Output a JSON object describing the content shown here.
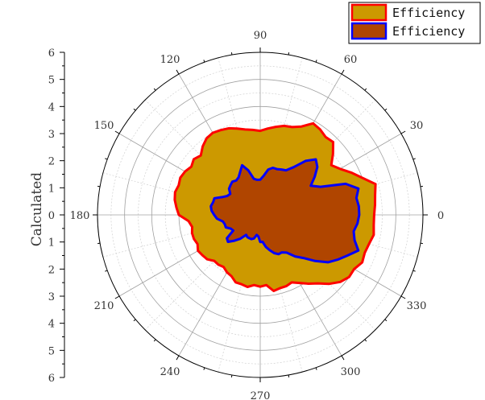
{
  "chart_data": {
    "type": "polar-area",
    "ylabel": "Calculated",
    "rlim": [
      0,
      6
    ],
    "radial_axis_ticks": [
      "6",
      "5",
      "4",
      "3",
      "2",
      "1",
      "0",
      "1",
      "2",
      "3",
      "4",
      "5",
      "6"
    ],
    "angle_ticks": [
      "0",
      "30",
      "60",
      "90",
      "120",
      "150",
      "180",
      "210",
      "240",
      "270",
      "300",
      "330"
    ],
    "angle_tick_values": [
      0,
      30,
      60,
      90,
      120,
      150,
      180,
      210,
      240,
      270,
      300,
      330
    ],
    "grid": true,
    "legend_position": "top-right",
    "series": [
      {
        "name": "Efficiency",
        "fill": "#cc9900",
        "stroke": "#ff0000",
        "points": [
          [
            0,
            4.2
          ],
          [
            5,
            4.25
          ],
          [
            10,
            4.3
          ],
          [
            15,
            4.4
          ],
          [
            20,
            4.0
          ],
          [
            25,
            3.7
          ],
          [
            30,
            3.4
          ],
          [
            35,
            3.2
          ],
          [
            40,
            3.5
          ],
          [
            45,
            3.8
          ],
          [
            50,
            3.75
          ],
          [
            55,
            3.85
          ],
          [
            60,
            3.9
          ],
          [
            65,
            3.6
          ],
          [
            70,
            3.45
          ],
          [
            75,
            3.4
          ],
          [
            80,
            3.3
          ],
          [
            85,
            3.2
          ],
          [
            90,
            3.1
          ],
          [
            95,
            3.15
          ],
          [
            100,
            3.2
          ],
          [
            105,
            3.3
          ],
          [
            110,
            3.4
          ],
          [
            115,
            3.45
          ],
          [
            120,
            3.5
          ],
          [
            125,
            3.45
          ],
          [
            130,
            3.3
          ],
          [
            135,
            3.1
          ],
          [
            140,
            3.2
          ],
          [
            145,
            3.1
          ],
          [
            150,
            3.2
          ],
          [
            155,
            3.25
          ],
          [
            160,
            3.2
          ],
          [
            165,
            3.25
          ],
          [
            170,
            3.2
          ],
          [
            175,
            3.1
          ],
          [
            180,
            3.0
          ],
          [
            185,
            2.65
          ],
          [
            190,
            2.55
          ],
          [
            195,
            2.6
          ],
          [
            200,
            2.6
          ],
          [
            205,
            2.55
          ],
          [
            210,
            2.65
          ],
          [
            215,
            2.6
          ],
          [
            220,
            2.55
          ],
          [
            225,
            2.4
          ],
          [
            230,
            2.4
          ],
          [
            235,
            2.35
          ],
          [
            240,
            2.45
          ],
          [
            245,
            2.5
          ],
          [
            250,
            2.65
          ],
          [
            255,
            2.65
          ],
          [
            260,
            2.7
          ],
          [
            265,
            2.6
          ],
          [
            270,
            2.65
          ],
          [
            275,
            2.6
          ],
          [
            280,
            2.85
          ],
          [
            285,
            2.8
          ],
          [
            290,
            2.8
          ],
          [
            295,
            2.75
          ],
          [
            300,
            2.9
          ],
          [
            305,
            3.1
          ],
          [
            310,
            3.3
          ],
          [
            315,
            3.6
          ],
          [
            320,
            3.85
          ],
          [
            325,
            4.0
          ],
          [
            330,
            4.0
          ],
          [
            335,
            4.15
          ],
          [
            340,
            4.1
          ],
          [
            345,
            4.15
          ],
          [
            350,
            4.25
          ],
          [
            355,
            4.2
          ]
        ]
      },
      {
        "name": "Efficiency",
        "fill": "#b04500",
        "stroke": "#0000ff",
        "points": [
          [
            0,
            3.65
          ],
          [
            5,
            3.65
          ],
          [
            10,
            3.6
          ],
          [
            15,
            3.75
          ],
          [
            20,
            3.35
          ],
          [
            25,
            2.45
          ],
          [
            30,
            2.15
          ],
          [
            35,
            2.45
          ],
          [
            40,
            2.75
          ],
          [
            45,
            2.9
          ],
          [
            50,
            2.6
          ],
          [
            55,
            2.15
          ],
          [
            60,
            1.9
          ],
          [
            65,
            1.85
          ],
          [
            70,
            1.8
          ],
          [
            75,
            1.8
          ],
          [
            80,
            1.7
          ],
          [
            85,
            1.45
          ],
          [
            90,
            1.3
          ],
          [
            95,
            1.3
          ],
          [
            100,
            1.35
          ],
          [
            105,
            1.7
          ],
          [
            110,
            1.95
          ],
          [
            115,
            1.75
          ],
          [
            120,
            1.6
          ],
          [
            125,
            1.55
          ],
          [
            130,
            1.6
          ],
          [
            135,
            1.55
          ],
          [
            140,
            1.5
          ],
          [
            145,
            1.35
          ],
          [
            150,
            1.4
          ],
          [
            155,
            1.55
          ],
          [
            160,
            1.8
          ],
          [
            165,
            1.8
          ],
          [
            170,
            1.85
          ],
          [
            175,
            1.8
          ],
          [
            180,
            1.7
          ],
          [
            185,
            1.6
          ],
          [
            190,
            1.4
          ],
          [
            195,
            1.35
          ],
          [
            200,
            1.35
          ],
          [
            205,
            1.2
          ],
          [
            210,
            1.15
          ],
          [
            215,
            1.5
          ],
          [
            220,
            1.55
          ],
          [
            225,
            1.35
          ],
          [
            230,
            1.15
          ],
          [
            235,
            0.9
          ],
          [
            240,
            0.95
          ],
          [
            245,
            0.95
          ],
          [
            250,
            0.95
          ],
          [
            255,
            0.9
          ],
          [
            260,
            0.75
          ],
          [
            265,
            0.8
          ],
          [
            270,
            1.0
          ],
          [
            275,
            1.0
          ],
          [
            280,
            1.2
          ],
          [
            285,
            1.35
          ],
          [
            290,
            1.5
          ],
          [
            295,
            1.6
          ],
          [
            300,
            1.6
          ],
          [
            305,
            1.7
          ],
          [
            310,
            2.0
          ],
          [
            315,
            2.25
          ],
          [
            320,
            2.65
          ],
          [
            325,
            3.05
          ],
          [
            330,
            3.3
          ],
          [
            335,
            3.55
          ],
          [
            340,
            3.85
          ],
          [
            345,
            3.6
          ],
          [
            350,
            3.5
          ],
          [
            355,
            3.6
          ]
        ]
      }
    ]
  },
  "colors": {
    "axis": "#000000",
    "major_grid": "#a0a0a0",
    "minor_grid": "#d0d0d0",
    "text": "#333333"
  }
}
